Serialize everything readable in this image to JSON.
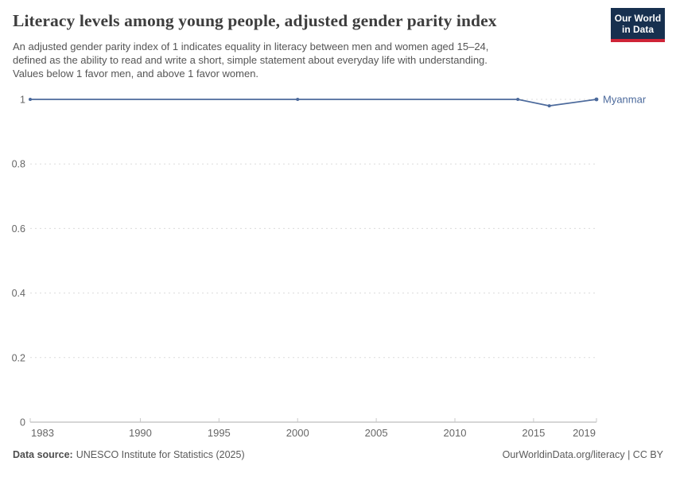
{
  "header": {
    "title": "Literacy levels among young people, adjusted gender parity index",
    "subtitle": "An adjusted gender parity index of 1 indicates equality in literacy between men and women aged 15–24,\ndefined as the ability to read and write a short, simple statement about everyday life with understanding.\nValues below 1 favor men, and above 1 favor women.",
    "logo": {
      "line1": "Our World",
      "line2": "in Data"
    }
  },
  "chart_data": {
    "type": "line",
    "title": "Literacy levels among young people, adjusted gender parity index",
    "xlabel": "",
    "ylabel": "",
    "x_range": [
      1983,
      2019
    ],
    "y_range": [
      0,
      1
    ],
    "x_ticks": [
      1983,
      1990,
      1995,
      2000,
      2005,
      2010,
      2015,
      2019
    ],
    "y_ticks": [
      0,
      0.2,
      0.4,
      0.6,
      0.8,
      1
    ],
    "grid": "horizontal-dashed",
    "legend_position": "line-end-label",
    "series": [
      {
        "name": "Myanmar",
        "color": "#4c6a9c",
        "points": [
          {
            "x": 1983,
            "y": 1
          },
          {
            "x": 2000,
            "y": 1
          },
          {
            "x": 2014,
            "y": 1
          },
          {
            "x": 2016,
            "y": 0.98
          },
          {
            "x": 2019,
            "y": 1
          }
        ]
      }
    ]
  },
  "footer": {
    "source_label": "Data source:",
    "source_value": "UNESCO Institute for Statistics (2025)",
    "link": "OurWorldinData.org/literacy | CC BY"
  },
  "colors": {
    "line_blue": "#4c6a9c",
    "gridline": "#dcdcdc",
    "axis_line": "#adadad",
    "tick_mark": "#c8c8c8",
    "axis_text": "#666666",
    "logo_navy": "#17304f",
    "logo_red": "#cf2437"
  }
}
